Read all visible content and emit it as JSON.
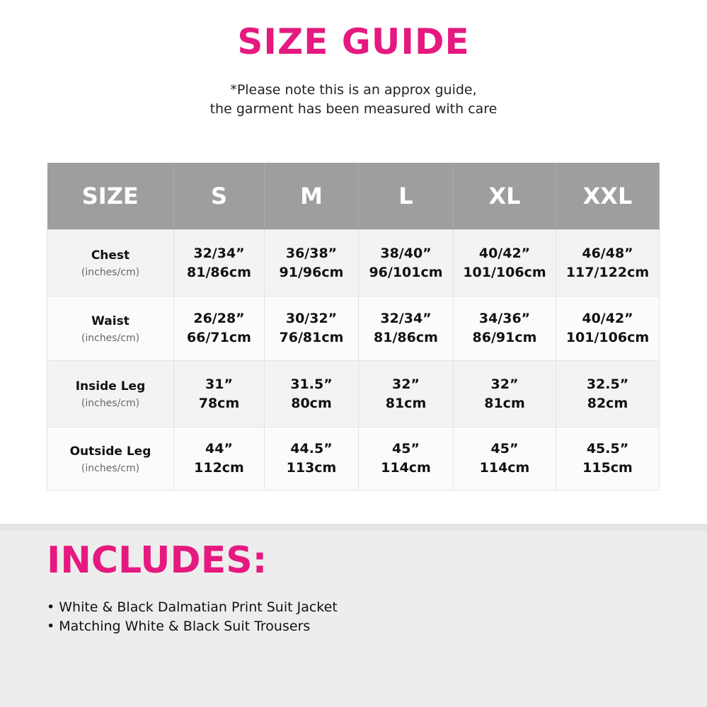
{
  "title": "SIZE GUIDE",
  "note_lines": [
    "*Please note this is an approx guide,",
    "the garment has been measured with care"
  ],
  "accent_color": "#e5197f",
  "table": {
    "headers": [
      "SIZE",
      "S",
      "M",
      "L",
      "XL",
      "XXL"
    ],
    "rows": [
      {
        "label": "Chest",
        "unit": "(inches/cm)",
        "cells": [
          [
            "32/34”",
            "81/86cm"
          ],
          [
            "36/38”",
            "91/96cm"
          ],
          [
            "38/40”",
            "96/101cm"
          ],
          [
            "40/42”",
            "101/106cm"
          ],
          [
            "46/48”",
            "117/122cm"
          ]
        ]
      },
      {
        "label": "Waist",
        "unit": "(inches/cm)",
        "cells": [
          [
            "26/28”",
            "66/71cm"
          ],
          [
            "30/32”",
            "76/81cm"
          ],
          [
            "32/34”",
            "81/86cm"
          ],
          [
            "34/36”",
            "86/91cm"
          ],
          [
            "40/42”",
            "101/106cm"
          ]
        ]
      },
      {
        "label": "Inside Leg",
        "unit": "(inches/cm)",
        "cells": [
          [
            "31”",
            "78cm"
          ],
          [
            "31.5”",
            "80cm"
          ],
          [
            "32”",
            "81cm"
          ],
          [
            "32”",
            "81cm"
          ],
          [
            "32.5”",
            "82cm"
          ]
        ]
      },
      {
        "label": "Outside Leg",
        "unit": "(inches/cm)",
        "cells": [
          [
            "44”",
            "112cm"
          ],
          [
            "44.5”",
            "113cm"
          ],
          [
            "45”",
            "114cm"
          ],
          [
            "45”",
            "114cm"
          ],
          [
            "45.5”",
            "115cm"
          ]
        ]
      }
    ]
  },
  "includes": {
    "title": "INCLUDES:",
    "items": [
      "White & Black Dalmatian Print Suit Jacket",
      "Matching White & Black Suit Trousers"
    ]
  }
}
